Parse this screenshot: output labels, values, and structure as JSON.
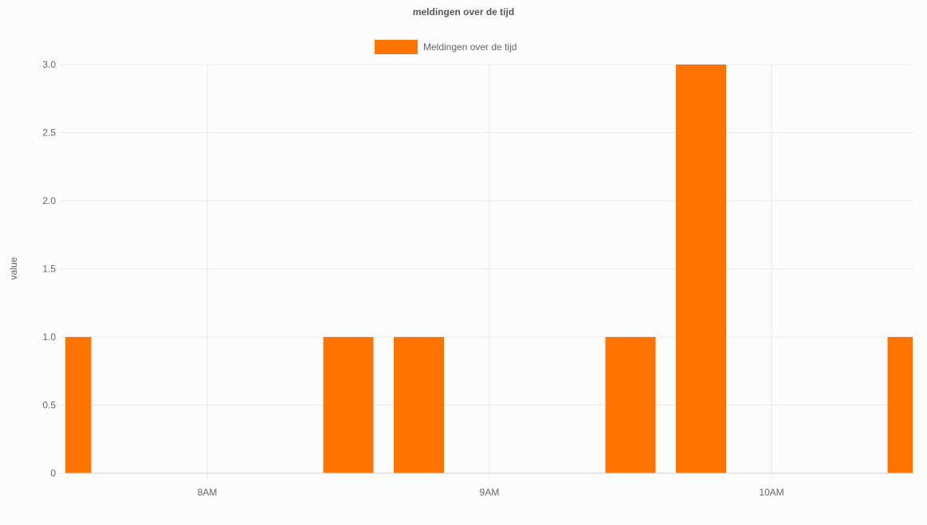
{
  "chart_data": {
    "type": "bar",
    "title": "meldingen over de tijd",
    "ylabel": "value",
    "xlabel": "",
    "ylim": [
      0,
      3
    ],
    "yticks": [
      "0",
      "0.5",
      "1.0",
      "1.5",
      "2.0",
      "2.5",
      "3.0"
    ],
    "x_tick_labels": [
      "8AM",
      "9AM",
      "10AM"
    ],
    "grid": true,
    "legend_position": "top",
    "series": [
      {
        "name": "Meldingen over de tijd",
        "color": "#ff7300",
        "points": [
          {
            "time": "7:30",
            "value": 1
          },
          {
            "time": "8:30",
            "value": 1
          },
          {
            "time": "8:45",
            "value": 1
          },
          {
            "time": "9:30",
            "value": 1
          },
          {
            "time": "9:45",
            "value": 3
          },
          {
            "time": "10:30",
            "value": 1
          }
        ]
      }
    ]
  }
}
